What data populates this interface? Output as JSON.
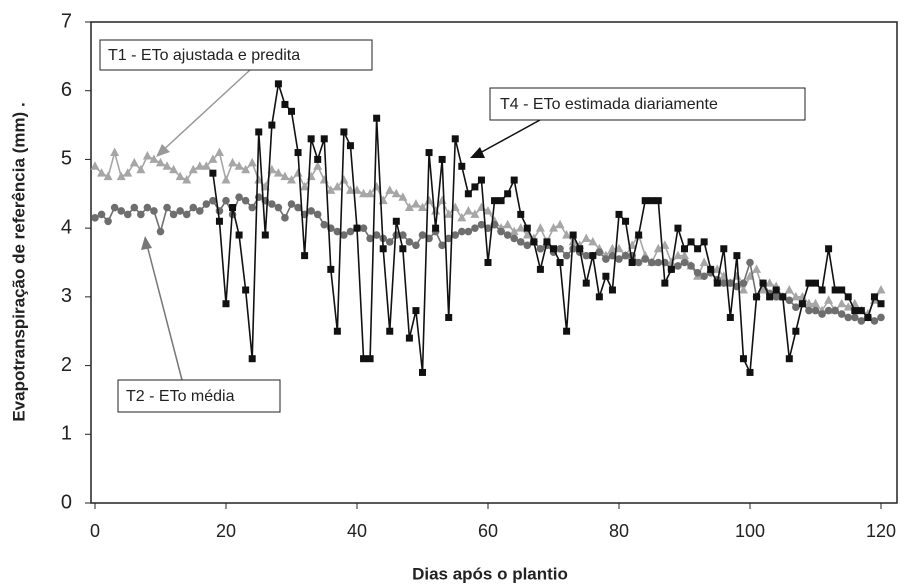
{
  "chart_data": {
    "type": "line",
    "xlabel": "Dias  após o plantio",
    "ylabel": "Evapotranspiração de referência (mm) .",
    "x": [
      0,
      1,
      2,
      3,
      4,
      5,
      6,
      7,
      8,
      9,
      10,
      11,
      12,
      13,
      14,
      15,
      16,
      17,
      18,
      19,
      20,
      21,
      22,
      23,
      24,
      25,
      26,
      27,
      28,
      29,
      30,
      31,
      32,
      33,
      34,
      35,
      36,
      37,
      38,
      39,
      40,
      41,
      42,
      43,
      44,
      45,
      46,
      47,
      48,
      49,
      50,
      51,
      52,
      53,
      54,
      55,
      56,
      57,
      58,
      59,
      60,
      61,
      62,
      63,
      64,
      65,
      66,
      67,
      68,
      69,
      70,
      71,
      72,
      73,
      74,
      75,
      76,
      77,
      78,
      79,
      80,
      81,
      82,
      83,
      84,
      85,
      86,
      87,
      88,
      89,
      90,
      91,
      92,
      93,
      94,
      95,
      96,
      97,
      98,
      99,
      100,
      101,
      102,
      103,
      104,
      105,
      106,
      107,
      108,
      109,
      110,
      111,
      112,
      113,
      114,
      115,
      116,
      117,
      118,
      119,
      120
    ],
    "series": [
      {
        "name": "T1",
        "color": "#a6a6a6",
        "marker": "triangle",
        "values": [
          4.9,
          4.8,
          4.75,
          5.1,
          4.75,
          4.8,
          4.95,
          4.85,
          5.05,
          5.0,
          4.95,
          4.9,
          4.85,
          4.75,
          4.7,
          4.85,
          4.9,
          4.9,
          5.0,
          5.1,
          4.7,
          4.95,
          4.9,
          4.85,
          4.95,
          4.7,
          4.6,
          4.85,
          4.8,
          4.75,
          4.7,
          4.8,
          4.6,
          4.75,
          4.9,
          4.7,
          4.55,
          4.6,
          4.7,
          4.55,
          4.55,
          4.5,
          4.5,
          4.6,
          4.4,
          4.55,
          4.5,
          4.45,
          4.3,
          4.35,
          4.3,
          4.4,
          4.25,
          4.4,
          4.2,
          4.3,
          4.15,
          4.25,
          4.2,
          4.3,
          4.25,
          4.1,
          4.0,
          4.05,
          3.95,
          4.0,
          3.9,
          3.85,
          4.0,
          3.8,
          4.0,
          4.05,
          3.9,
          3.8,
          3.75,
          3.85,
          3.8,
          3.7,
          3.6,
          3.7,
          3.7,
          3.6,
          3.75,
          3.9,
          3.6,
          3.5,
          3.7,
          3.75,
          3.5,
          3.6,
          3.6,
          3.45,
          3.3,
          3.5,
          3.4,
          3.4,
          3.3,
          3.2,
          3.3,
          3.1,
          3.3,
          3.4,
          3.1,
          3.2,
          3.15,
          3.0,
          3.1,
          3.0,
          3.0,
          2.9,
          2.9,
          2.8,
          2.95,
          2.8,
          2.9,
          2.85,
          2.9,
          2.8,
          2.75,
          2.95,
          3.1
        ]
      },
      {
        "name": "T2",
        "color": "#6e6e6e",
        "marker": "circle",
        "values": [
          4.15,
          4.2,
          4.1,
          4.3,
          4.25,
          4.2,
          4.3,
          4.2,
          4.3,
          4.25,
          3.95,
          4.3,
          4.2,
          4.25,
          4.2,
          4.3,
          4.25,
          4.35,
          4.4,
          4.25,
          4.4,
          4.2,
          4.45,
          4.4,
          4.3,
          4.45,
          4.4,
          4.35,
          4.3,
          4.15,
          4.35,
          4.3,
          4.2,
          4.25,
          4.2,
          4.05,
          4.0,
          3.95,
          3.9,
          3.95,
          4.0,
          4.0,
          3.85,
          3.9,
          3.85,
          3.8,
          3.9,
          3.9,
          3.8,
          3.75,
          3.9,
          3.85,
          3.95,
          3.75,
          3.85,
          3.9,
          3.95,
          3.95,
          4.0,
          4.05,
          4.0,
          4.05,
          3.95,
          3.9,
          3.85,
          3.8,
          3.75,
          3.8,
          3.7,
          3.75,
          3.65,
          3.7,
          3.6,
          3.7,
          3.65,
          3.6,
          3.6,
          3.65,
          3.55,
          3.6,
          3.55,
          3.6,
          3.6,
          3.5,
          3.55,
          3.5,
          3.5,
          3.5,
          3.4,
          3.45,
          3.5,
          3.45,
          3.35,
          3.3,
          3.35,
          3.25,
          3.2,
          3.2,
          3.15,
          3.2,
          3.5,
          3.0,
          3.2,
          3.05,
          3.0,
          3.0,
          2.95,
          2.85,
          2.9,
          2.8,
          2.8,
          2.75,
          2.8,
          2.8,
          2.75,
          2.7,
          2.7,
          2.65,
          2.7,
          2.65,
          2.7
        ]
      },
      {
        "name": "T4",
        "color": "#111111",
        "marker": "square",
        "values": [
          null,
          null,
          null,
          null,
          null,
          null,
          null,
          null,
          null,
          null,
          null,
          null,
          null,
          null,
          null,
          null,
          null,
          null,
          4.8,
          4.1,
          2.9,
          4.3,
          3.9,
          3.1,
          2.1,
          5.4,
          3.9,
          5.5,
          6.1,
          5.8,
          5.7,
          5.1,
          3.6,
          5.3,
          5.0,
          5.3,
          3.4,
          2.5,
          5.4,
          5.2,
          4.0,
          2.1,
          2.1,
          5.6,
          3.7,
          2.5,
          4.1,
          3.7,
          2.4,
          2.8,
          1.9,
          5.1,
          4.0,
          5.0,
          2.7,
          5.3,
          4.9,
          4.5,
          4.6,
          4.7,
          3.5,
          4.4,
          4.4,
          4.5,
          4.7,
          4.2,
          4.0,
          3.8,
          3.4,
          3.8,
          3.7,
          3.5,
          2.5,
          3.9,
          3.7,
          3.2,
          3.6,
          3.0,
          3.3,
          3.1,
          4.2,
          4.1,
          3.5,
          3.9,
          4.4,
          4.4,
          4.4,
          3.2,
          3.4,
          4.0,
          3.7,
          3.8,
          3.7,
          3.8,
          3.4,
          3.2,
          3.7,
          2.7,
          3.6,
          2.1,
          1.9,
          3.0,
          3.2,
          3.0,
          3.1,
          3.0,
          2.1,
          2.5,
          2.9,
          3.2,
          3.2,
          3.1,
          3.7,
          3.1,
          3.1,
          3.0,
          2.8,
          2.8,
          2.7,
          3.0,
          2.9
        ]
      }
    ],
    "annotations": [
      "T1 -  ETo ajustada e predita",
      "T4 - ETo estimada diariamente",
      "T2 - ETo média"
    ],
    "xlim": [
      0,
      120
    ],
    "xticks": [
      0,
      20,
      40,
      60,
      80,
      100,
      120
    ],
    "ylim": [
      0,
      7
    ],
    "yticks": [
      0,
      1,
      2,
      3,
      4,
      5,
      6,
      7
    ],
    "grid": false
  }
}
